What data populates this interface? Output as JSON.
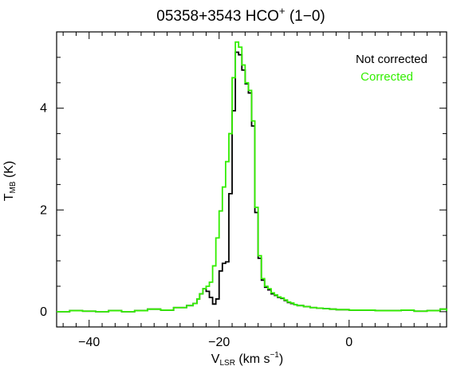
{
  "chart_data": {
    "type": "line",
    "step": true,
    "title": {
      "prefix": "05358+3543   HCO",
      "superscript": "+",
      "suffix": " (1−0)"
    },
    "xlabel": {
      "main": "V",
      "sub": "LSR",
      "units": " (km s",
      "sup": "−1",
      "close": ")"
    },
    "ylabel": {
      "main": "T",
      "sub": "MB",
      "units": " (K)"
    },
    "xlim": [
      -45,
      15
    ],
    "ylim": [
      -0.3,
      5.5
    ],
    "x_ticks": [
      {
        "value": -40,
        "label": "−40"
      },
      {
        "value": -20,
        "label": "−20"
      },
      {
        "value": 0,
        "label": "0"
      }
    ],
    "y_ticks": [
      {
        "value": 0,
        "label": "0"
      },
      {
        "value": 2,
        "label": "2"
      },
      {
        "value": 4,
        "label": "4"
      }
    ],
    "grid": false,
    "legend": "top-right",
    "series": [
      {
        "name": "Not corrected",
        "color": "#000000",
        "points": [
          [
            -45.0,
            0.0
          ],
          [
            -43.0,
            0.02
          ],
          [
            -41.0,
            0.01
          ],
          [
            -39.0,
            0.0
          ],
          [
            -37.0,
            0.02
          ],
          [
            -35.0,
            0.0
          ],
          [
            -33.0,
            0.02
          ],
          [
            -31.0,
            0.05
          ],
          [
            -29.0,
            0.03
          ],
          [
            -27.0,
            0.08
          ],
          [
            -25.0,
            0.12
          ],
          [
            -24.0,
            0.16
          ],
          [
            -23.4,
            0.25
          ],
          [
            -23.0,
            0.35
          ],
          [
            -22.5,
            0.45
          ],
          [
            -22.0,
            0.4
          ],
          [
            -21.5,
            0.28
          ],
          [
            -21.0,
            0.15
          ],
          [
            -20.5,
            0.25
          ],
          [
            -20.0,
            0.8
          ],
          [
            -19.5,
            0.95
          ],
          [
            -19.0,
            0.98
          ],
          [
            -18.5,
            2.32
          ],
          [
            -18.0,
            3.95
          ],
          [
            -17.5,
            5.1
          ],
          [
            -17.0,
            5.05
          ],
          [
            -16.5,
            4.75
          ],
          [
            -16.0,
            4.48
          ],
          [
            -15.5,
            4.3
          ],
          [
            -15.0,
            3.65
          ],
          [
            -14.5,
            1.95
          ],
          [
            -14.0,
            1.05
          ],
          [
            -13.5,
            0.62
          ],
          [
            -13.0,
            0.48
          ],
          [
            -12.5,
            0.43
          ],
          [
            -12.0,
            0.35
          ],
          [
            -11.5,
            0.32
          ],
          [
            -11.0,
            0.28
          ],
          [
            -10.5,
            0.26
          ],
          [
            -10.0,
            0.22
          ],
          [
            -9.5,
            0.18
          ],
          [
            -9.0,
            0.16
          ],
          [
            -8.5,
            0.14
          ],
          [
            -8.0,
            0.12
          ],
          [
            -7.0,
            0.1
          ],
          [
            -6.0,
            0.08
          ],
          [
            -5.0,
            0.07
          ],
          [
            -4.0,
            0.06
          ],
          [
            -3.0,
            0.05
          ],
          [
            -2.0,
            0.04
          ],
          [
            -1.0,
            0.04
          ],
          [
            0.0,
            0.03
          ],
          [
            2.0,
            0.03
          ],
          [
            4.0,
            0.02
          ],
          [
            6.0,
            0.02
          ],
          [
            8.0,
            0.03
          ],
          [
            10.0,
            0.01
          ],
          [
            12.0,
            0.02
          ],
          [
            14.0,
            0.05
          ],
          [
            15.0,
            0.01
          ]
        ]
      },
      {
        "name": "Corrected",
        "color": "#33ee00",
        "points": [
          [
            -45.0,
            0.0
          ],
          [
            -43.0,
            0.02
          ],
          [
            -41.0,
            0.01
          ],
          [
            -39.0,
            0.0
          ],
          [
            -37.0,
            0.02
          ],
          [
            -35.0,
            0.0
          ],
          [
            -33.0,
            0.02
          ],
          [
            -31.0,
            0.05
          ],
          [
            -29.0,
            0.03
          ],
          [
            -27.0,
            0.08
          ],
          [
            -25.0,
            0.12
          ],
          [
            -24.0,
            0.16
          ],
          [
            -23.4,
            0.25
          ],
          [
            -23.0,
            0.35
          ],
          [
            -22.5,
            0.45
          ],
          [
            -22.0,
            0.5
          ],
          [
            -21.5,
            0.58
          ],
          [
            -21.0,
            0.9
          ],
          [
            -20.5,
            1.45
          ],
          [
            -20.0,
            1.98
          ],
          [
            -19.5,
            2.45
          ],
          [
            -19.0,
            2.95
          ],
          [
            -18.5,
            3.5
          ],
          [
            -18.0,
            4.6
          ],
          [
            -17.5,
            5.3
          ],
          [
            -17.0,
            5.2
          ],
          [
            -16.5,
            4.85
          ],
          [
            -16.0,
            4.5
          ],
          [
            -15.5,
            4.35
          ],
          [
            -15.0,
            3.75
          ],
          [
            -14.5,
            2.05
          ],
          [
            -14.0,
            1.1
          ],
          [
            -13.5,
            0.65
          ],
          [
            -13.0,
            0.5
          ],
          [
            -12.5,
            0.45
          ],
          [
            -12.0,
            0.37
          ],
          [
            -11.5,
            0.33
          ],
          [
            -11.0,
            0.29
          ],
          [
            -10.5,
            0.27
          ],
          [
            -10.0,
            0.23
          ],
          [
            -9.5,
            0.19
          ],
          [
            -9.0,
            0.17
          ],
          [
            -8.5,
            0.14
          ],
          [
            -8.0,
            0.12
          ],
          [
            -7.0,
            0.1
          ],
          [
            -6.0,
            0.08
          ],
          [
            -5.0,
            0.07
          ],
          [
            -4.0,
            0.06
          ],
          [
            -3.0,
            0.05
          ],
          [
            -2.0,
            0.04
          ],
          [
            -1.0,
            0.04
          ],
          [
            0.0,
            0.03
          ],
          [
            2.0,
            0.03
          ],
          [
            4.0,
            0.02
          ],
          [
            6.0,
            0.02
          ],
          [
            8.0,
            0.03
          ],
          [
            10.0,
            0.01
          ],
          [
            12.0,
            0.02
          ],
          [
            14.0,
            0.05
          ],
          [
            15.0,
            0.01
          ]
        ]
      }
    ]
  }
}
